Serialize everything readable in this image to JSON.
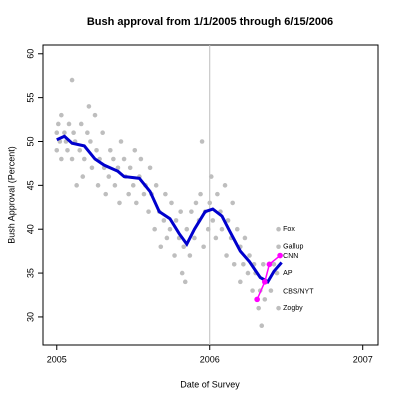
{
  "chart_data": {
    "type": "scatter",
    "title": "Bush approval from 1/1/2005 through 6/15/2006",
    "x_label": "Date of Survey",
    "y_label": "Bush Approval (Percent)",
    "xlim": [
      2004.91,
      2007.1
    ],
    "ylim": [
      26.8,
      61
    ],
    "xticks": [
      2005,
      2006,
      2007
    ],
    "yticks": [
      30,
      35,
      40,
      45,
      50,
      55,
      60
    ],
    "reference_x": 2006,
    "series": [
      {
        "name": "Polls",
        "color": "#bebebe",
        "x": [
          2005.0,
          2005.0,
          2005.01,
          2005.02,
          2005.03,
          2005.03,
          2005.05,
          2005.06,
          2005.07,
          2005.08,
          2005.1,
          2005.1,
          2005.11,
          2005.12,
          2005.13,
          2005.15,
          2005.16,
          2005.17,
          2005.18,
          2005.2,
          2005.21,
          2005.22,
          2005.23,
          2005.25,
          2005.26,
          2005.27,
          2005.28,
          2005.3,
          2005.31,
          2005.32,
          2005.34,
          2005.35,
          2005.37,
          2005.38,
          2005.4,
          2005.41,
          2005.42,
          2005.44,
          2005.45,
          2005.47,
          2005.48,
          2005.5,
          2005.51,
          2005.52,
          2005.54,
          2005.55,
          2005.57,
          2005.58,
          2005.6,
          2005.61,
          2005.62,
          2005.64,
          2005.65,
          2005.67,
          2005.68,
          2005.7,
          2005.71,
          2005.72,
          2005.74,
          2005.75,
          2005.77,
          2005.78,
          2005.8,
          2005.81,
          2005.82,
          2005.83,
          2005.84,
          2005.85,
          2005.87,
          2005.88,
          2005.9,
          2005.91,
          2005.93,
          2005.94,
          2005.95,
          2005.96,
          2005.97,
          2005.99,
          2006.0,
          2006.01,
          2006.02,
          2006.04,
          2006.05,
          2006.07,
          2006.08,
          2006.1,
          2006.11,
          2006.12,
          2006.14,
          2006.15,
          2006.16,
          2006.18,
          2006.2,
          2006.2,
          2006.22,
          2006.23,
          2006.25,
          2006.26,
          2006.28,
          2006.29,
          2006.3,
          2006.32,
          2006.33,
          2006.34,
          2006.35,
          2006.36,
          2006.37,
          2006.4,
          2006.42,
          2006.44,
          2006.45,
          2006.45,
          2006.45
        ],
        "values": [
          49,
          51,
          52,
          50,
          53,
          48,
          51,
          50,
          49,
          52,
          57,
          48,
          51,
          50,
          45,
          49,
          52,
          46,
          48,
          51,
          54,
          50,
          47,
          53,
          49,
          45,
          48,
          51,
          47,
          44,
          46,
          49,
          48,
          45,
          47,
          43,
          50,
          48,
          46,
          44,
          47,
          45,
          49,
          43,
          46,
          48,
          44,
          45,
          42,
          47,
          44,
          40,
          45,
          42,
          38,
          41,
          44,
          39,
          40,
          43,
          37,
          41,
          39,
          42,
          35,
          38,
          34,
          40,
          37,
          42,
          39,
          43,
          41,
          44,
          50,
          38,
          42,
          40,
          43,
          46,
          41,
          39,
          44,
          42,
          40,
          45,
          37,
          41,
          39,
          43,
          36,
          40,
          34,
          38,
          36,
          39,
          35,
          37,
          33,
          36,
          35,
          31,
          33,
          29,
          36,
          32,
          34,
          33,
          36,
          35,
          40,
          38,
          31
        ]
      },
      {
        "name": "Trend",
        "color": "#0000cd",
        "x": [
          2005.0,
          2005.05,
          2005.1,
          2005.18,
          2005.25,
          2005.31,
          2005.4,
          2005.44,
          2005.54,
          2005.61,
          2005.67,
          2005.74,
          2005.8,
          2005.85,
          2005.9,
          2005.97,
          2006.02,
          2006.08,
          2006.13,
          2006.2,
          2006.26,
          2006.33,
          2006.38,
          2006.42,
          2006.47
        ],
        "values": [
          50.2,
          50.6,
          49.8,
          49.5,
          48.0,
          47.3,
          46.6,
          46.0,
          45.8,
          44.3,
          42.0,
          41.2,
          39.5,
          38.3,
          40.0,
          42.0,
          42.3,
          41.5,
          39.8,
          37.5,
          36.3,
          34.5,
          34.0,
          35.2,
          36.2
        ]
      },
      {
        "name": "CNN",
        "color": "#ff00ff",
        "x": [
          2006.31,
          2006.36,
          2006.39,
          2006.46
        ],
        "values": [
          32,
          34,
          36,
          37
        ]
      }
    ],
    "pollster_labels": [
      {
        "text": "Fox",
        "x": 2006.48,
        "y": 40,
        "color": "#000000"
      },
      {
        "text": "Gallup",
        "x": 2006.48,
        "y": 38,
        "color": "#000000"
      },
      {
        "text": "CNN",
        "x": 2006.48,
        "y": 36.9,
        "color": "#ff00ff"
      },
      {
        "text": "AP",
        "x": 2006.48,
        "y": 35,
        "color": "#000000"
      },
      {
        "text": "CBS/NYT",
        "x": 2006.48,
        "y": 32.9,
        "color": "#000000"
      },
      {
        "text": "Zogby",
        "x": 2006.48,
        "y": 31,
        "color": "#000000"
      }
    ]
  }
}
